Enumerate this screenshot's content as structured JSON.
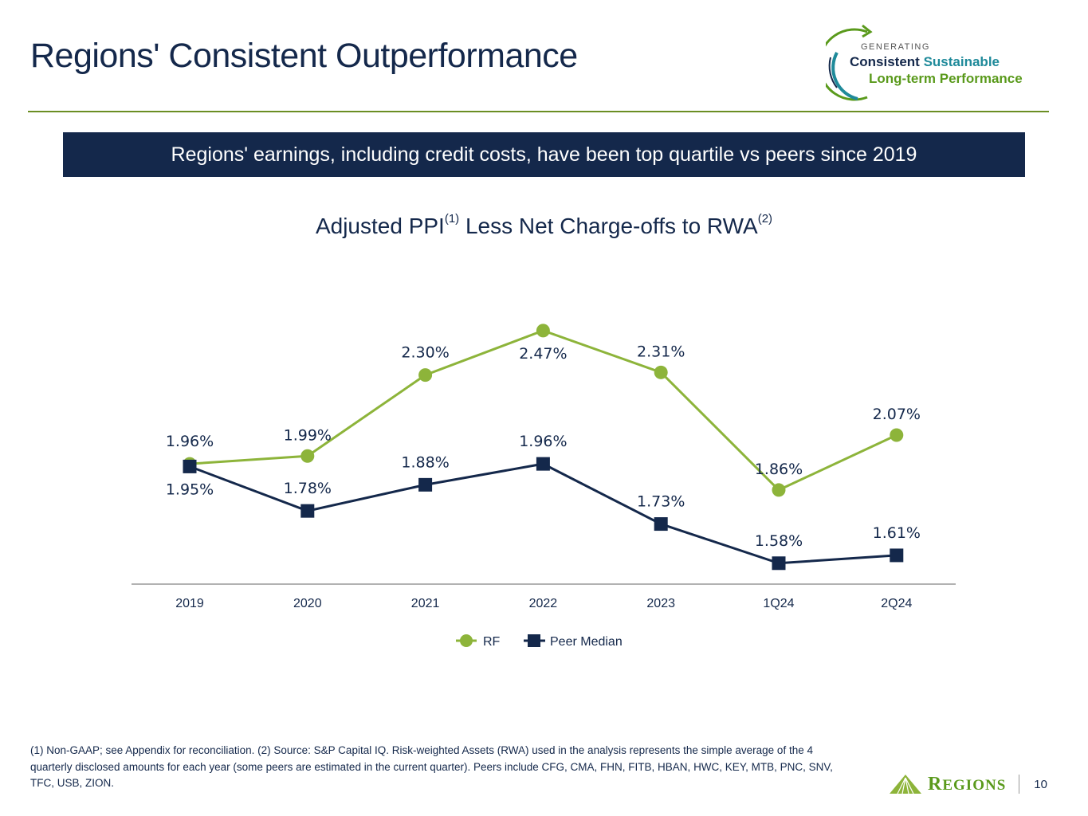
{
  "header": {
    "title": "Regions' Consistent Outperformance",
    "logo": {
      "line0": "GENERATING",
      "line1a": "Consistent",
      "line1b": "Sustainable",
      "line2": "Long-term Performance"
    }
  },
  "banner": {
    "text": "Regions' earnings, including credit costs, have been top quartile vs peers since 2019"
  },
  "footnote": {
    "text": "(1) Non-GAAP; see Appendix for reconciliation. (2) Source: S&P Capital IQ. Risk-weighted Assets (RWA) used in the analysis represents the simple average of the 4 quarterly disclosed amounts for each year (some peers are estimated in the current quarter). Peers include CFG, CMA, FHN, FITB, HBAN, HWC, KEY, MTB, PNC, SNV, TFC, USB, ZION."
  },
  "footer": {
    "brand_initial": "R",
    "brand_rest": "EGIONS",
    "page_number": "10"
  },
  "colors": {
    "navy": "#14284b",
    "green": "#8db43a",
    "rule_green": "#6b8e23",
    "axis_gray": "#999999"
  },
  "chart_data": {
    "type": "line",
    "title": "Adjusted PPI Less Net Charge-offs to RWA",
    "title_parts": {
      "a": "Adjusted PPI",
      "sup1": "(1)",
      "b": " Less Net Charge-offs to RWA",
      "sup2": "(2)"
    },
    "xlabel": "",
    "ylabel": "",
    "categories": [
      "2019",
      "2020",
      "2021",
      "2022",
      "2023",
      "1Q24",
      "2Q24"
    ],
    "ylim": [
      1.5,
      2.5
    ],
    "grid": false,
    "legend": "bottom",
    "series": [
      {
        "name": "RF",
        "marker": "circle",
        "color": "#8db43a",
        "values": [
          1.96,
          1.99,
          2.3,
          2.47,
          2.31,
          1.86,
          2.07
        ],
        "labels": [
          "1.96%",
          "1.99%",
          "2.30%",
          "2.47%",
          "2.31%",
          "1.86%",
          "2.07%"
        ]
      },
      {
        "name": "Peer Median",
        "marker": "square",
        "color": "#14284b",
        "values": [
          1.95,
          1.78,
          1.88,
          1.96,
          1.73,
          1.58,
          1.61
        ],
        "labels": [
          "1.95%",
          "1.78%",
          "1.88%",
          "1.96%",
          "1.73%",
          "1.58%",
          "1.61%"
        ]
      }
    ]
  }
}
